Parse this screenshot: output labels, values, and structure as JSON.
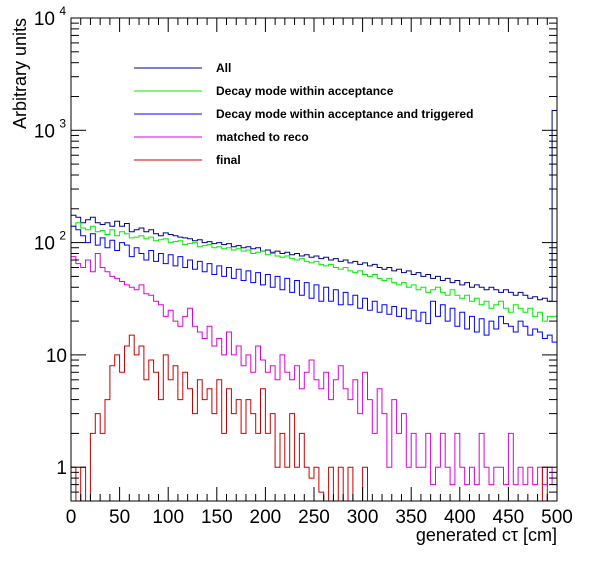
{
  "chart_data": {
    "type": "histogram",
    "title": "",
    "xlabel": "generated cτ [cm]",
    "ylabel": "Arbitrary units",
    "xlim": [
      0,
      500
    ],
    "ylim": [
      0.5,
      10000
    ],
    "y_scale": "log",
    "bin_width": 5,
    "x_ticks": [
      "0",
      "50",
      "100",
      "150",
      "200",
      "250",
      "300",
      "350",
      "400",
      "450",
      "500"
    ],
    "y_ticks": [
      {
        "value": 1,
        "base": "1",
        "exp": ""
      },
      {
        "value": 10,
        "base": "10",
        "exp": ""
      },
      {
        "value": 100,
        "base": "10",
        "exp": "2"
      },
      {
        "value": 1000,
        "base": "10",
        "exp": "3"
      },
      {
        "value": 10000,
        "base": "10",
        "exp": "4"
      }
    ],
    "legend_position": "top-left",
    "series": [
      {
        "name": "All",
        "color": "#00008b",
        "values": [
          175,
          168,
          150,
          160,
          168,
          150,
          145,
          150,
          140,
          155,
          140,
          148,
          125,
          130,
          135,
          125,
          130,
          120,
          115,
          122,
          118,
          115,
          112,
          110,
          108,
          104,
          106,
          100,
          102,
          98,
          100,
          96,
          98,
          92,
          94,
          90,
          92,
          88,
          90,
          84,
          86,
          82,
          84,
          80,
          82,
          78,
          80,
          76,
          78,
          74,
          76,
          72,
          74,
          70,
          72,
          68,
          70,
          66,
          68,
          64,
          66,
          62,
          64,
          60,
          58,
          60,
          56,
          58,
          54,
          56,
          52,
          54,
          50,
          52,
          48,
          50,
          46,
          48,
          44,
          46,
          42,
          44,
          40,
          42,
          40,
          38,
          40,
          38,
          36,
          38,
          36,
          34,
          36,
          34,
          32,
          33,
          31,
          32,
          30,
          1500
        ]
      },
      {
        "name": "Decay mode within acceptance",
        "color": "#00ee00",
        "values": [
          140,
          150,
          135,
          130,
          140,
          125,
          128,
          118,
          130,
          115,
          125,
          120,
          110,
          112,
          115,
          108,
          112,
          104,
          106,
          108,
          100,
          102,
          104,
          96,
          98,
          100,
          92,
          94,
          96,
          90,
          92,
          88,
          90,
          86,
          88,
          84,
          86,
          80,
          82,
          84,
          78,
          80,
          76,
          74,
          76,
          72,
          70,
          72,
          68,
          66,
          68,
          64,
          62,
          64,
          60,
          58,
          60,
          56,
          54,
          56,
          52,
          50,
          52,
          48,
          46,
          48,
          44,
          42,
          44,
          40,
          42,
          38,
          40,
          36,
          38,
          40,
          36,
          34,
          38,
          34,
          32,
          34,
          30,
          32,
          28,
          30,
          26,
          28,
          30,
          26,
          24,
          28,
          26,
          24,
          26,
          22,
          24,
          20,
          22,
          22
        ]
      },
      {
        "name": "Decay mode within acceptance and triggered",
        "color": "#0000ff",
        "values": [
          140,
          130,
          115,
          100,
          120,
          95,
          110,
          90,
          105,
          85,
          100,
          95,
          75,
          90,
          80,
          70,
          85,
          68,
          80,
          65,
          78,
          62,
          75,
          60,
          70,
          58,
          68,
          55,
          65,
          52,
          62,
          50,
          60,
          48,
          58,
          46,
          56,
          44,
          54,
          42,
          52,
          40,
          50,
          38,
          48,
          36,
          46,
          34,
          44,
          32,
          42,
          30,
          40,
          30,
          38,
          28,
          36,
          28,
          34,
          26,
          32,
          25,
          30,
          24,
          28,
          23,
          27,
          22,
          26,
          21,
          25,
          20,
          24,
          19,
          30,
          22,
          28,
          20,
          26,
          18,
          24,
          17,
          22,
          16,
          21,
          15,
          20,
          17,
          22,
          19,
          18,
          16,
          20,
          18,
          15,
          17,
          16,
          14,
          15,
          13
        ]
      },
      {
        "name": "matched to reco",
        "color": "#dd00dd",
        "values": [
          75,
          65,
          60,
          70,
          55,
          80,
          60,
          55,
          50,
          48,
          45,
          42,
          40,
          38,
          42,
          35,
          34,
          30,
          28,
          22,
          25,
          20,
          18,
          22,
          26,
          18,
          16,
          14,
          18,
          12,
          14,
          10,
          16,
          10,
          12,
          8,
          10,
          7,
          12,
          9,
          7,
          8,
          6,
          10,
          7,
          6,
          8,
          5,
          7,
          9,
          6,
          5,
          7,
          4,
          6,
          8,
          5,
          4,
          6,
          3,
          7,
          4,
          2,
          5,
          3,
          1,
          4,
          2,
          3,
          1,
          2,
          1,
          1,
          2,
          0.7,
          1,
          2,
          1,
          0.7,
          2,
          1,
          0.7,
          1,
          0.7,
          2,
          1,
          0.7,
          1,
          1,
          0.7,
          2,
          0.7,
          1,
          0.7,
          1,
          0.7,
          1,
          0.7,
          1,
          0.7
        ]
      },
      {
        "name": "final",
        "color": "#cc0000",
        "values": [
          1,
          0.4,
          1,
          0.4,
          2,
          3,
          2,
          4,
          8,
          10,
          7,
          12,
          15,
          10,
          12,
          6,
          9,
          7,
          4,
          10,
          6,
          8,
          4,
          7,
          5,
          3,
          6,
          4,
          5,
          3,
          6,
          2,
          5,
          3,
          4,
          2,
          4,
          3,
          2,
          5,
          2,
          3,
          1,
          2,
          1,
          3,
          1,
          2,
          1,
          0.8,
          1,
          0.6,
          0.4,
          1,
          0.4,
          1,
          0.4,
          1,
          0.4,
          0.4,
          1,
          0.4,
          0.4,
          0.4,
          0.4,
          0.4,
          0.4,
          0.4,
          0.4,
          0.4,
          0.4,
          0.4,
          0.4,
          0.4,
          0.4,
          0.4,
          0.4,
          0.4,
          0.4,
          0.4,
          0.4,
          0.4,
          0.4,
          0.4,
          0.4,
          0.4,
          0.4,
          0.4,
          0.4,
          0.4,
          0.4,
          0.4,
          0.4,
          0.4,
          0.4,
          0.4,
          0.4,
          1,
          0.4,
          0.4
        ]
      }
    ]
  }
}
